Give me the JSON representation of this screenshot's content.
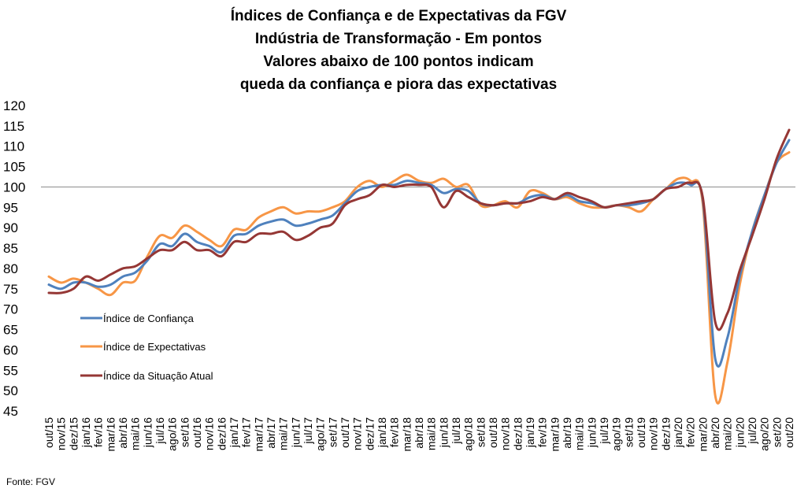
{
  "chart_data": {
    "type": "line",
    "title": [
      "Índices de Confiança e de Expectativas da FGV",
      "Indústria de Transformação - Em pontos",
      "Valores abaixo de 100 pontos indicam",
      "queda da confiança e piora das expectativas"
    ],
    "source": "Fonte: FGV",
    "ylim": [
      45,
      120
    ],
    "yticks": [
      45,
      50,
      55,
      60,
      65,
      70,
      75,
      80,
      85,
      90,
      95,
      100,
      105,
      110,
      115,
      120
    ],
    "reference_line": 100,
    "grid": false,
    "legend_position": "left",
    "categories": [
      "out/15",
      "nov/15",
      "dez/15",
      "jan/16",
      "fev/16",
      "mar/16",
      "abr/16",
      "mai/16",
      "jun/16",
      "jul/16",
      "ago/16",
      "set/16",
      "out/16",
      "nov/16",
      "dez/16",
      "jan/17",
      "fev/17",
      "mar/17",
      "abr/17",
      "mai/17",
      "jun/17",
      "jul/17",
      "ago/17",
      "set/17",
      "out/17",
      "nov/17",
      "dez/17",
      "jan/18",
      "fev/18",
      "mar/18",
      "abr/18",
      "mai/18",
      "jun/18",
      "jul/18",
      "ago/18",
      "set/18",
      "out/18",
      "nov/18",
      "dez/18",
      "jan/19",
      "fev/19",
      "mar/19",
      "abr/19",
      "mai/19",
      "jun/19",
      "jul/19",
      "ago/19",
      "set/19",
      "out/19",
      "nov/19",
      "dez/19",
      "jan/20",
      "fev/20",
      "mar/20",
      "abr/20",
      "mai/20",
      "jun/20",
      "jul/20",
      "ago/20",
      "set/20",
      "out/20"
    ],
    "series": [
      {
        "name": "Índice de Confiança",
        "color": "#4F81BD",
        "values": [
          76,
          75,
          76.5,
          76.5,
          75.5,
          76,
          78,
          79,
          82,
          86,
          85.5,
          88.5,
          86.5,
          85.5,
          84,
          88,
          88.5,
          90.5,
          91.5,
          92,
          90.5,
          91,
          92,
          93,
          96,
          99,
          100,
          100.5,
          100.5,
          101.5,
          101,
          100.5,
          98.5,
          99.5,
          99,
          96,
          95.5,
          96,
          96,
          97.5,
          98,
          97,
          98,
          96.5,
          96,
          95,
          95.5,
          95.5,
          96,
          97,
          99.5,
          101,
          100.5,
          97,
          58,
          63,
          78,
          89,
          98,
          106,
          111.5
        ]
      },
      {
        "name": "Índice de Expectativas",
        "color": "#F79646",
        "values": [
          78,
          76.5,
          77.5,
          76.5,
          75,
          73.5,
          76.5,
          77,
          83,
          88,
          87.5,
          90.5,
          89,
          87,
          85.5,
          89.5,
          89.5,
          92.5,
          94,
          95,
          93.5,
          94,
          94,
          95,
          96.5,
          100,
          101.5,
          100,
          101.5,
          103,
          101.5,
          101,
          102,
          100,
          100.5,
          95.5,
          95.5,
          96.5,
          95,
          99,
          98.5,
          97,
          97.5,
          96,
          95,
          95,
          95.5,
          95,
          94,
          97,
          99.5,
          102,
          101.5,
          96,
          49,
          57,
          76,
          89,
          98,
          106,
          108.5
        ]
      },
      {
        "name": "Índice da Situação Atual",
        "color": "#953735",
        "values": [
          74,
          74,
          75,
          78,
          77,
          78.5,
          80,
          80.5,
          82.5,
          84.5,
          84.5,
          86.5,
          84.5,
          84.5,
          83,
          86.5,
          86.5,
          88.5,
          88.5,
          89,
          87,
          88,
          90,
          91,
          95.5,
          97,
          98,
          100.5,
          100,
          100.5,
          100.5,
          100,
          95,
          99,
          97.5,
          96,
          95.5,
          96,
          96,
          96.5,
          97.5,
          97,
          98.5,
          97.5,
          96.5,
          95,
          95.5,
          96,
          96.5,
          97,
          99.5,
          100,
          101,
          97.5,
          67,
          69,
          79.5,
          88,
          97,
          107,
          114
        ]
      }
    ]
  }
}
